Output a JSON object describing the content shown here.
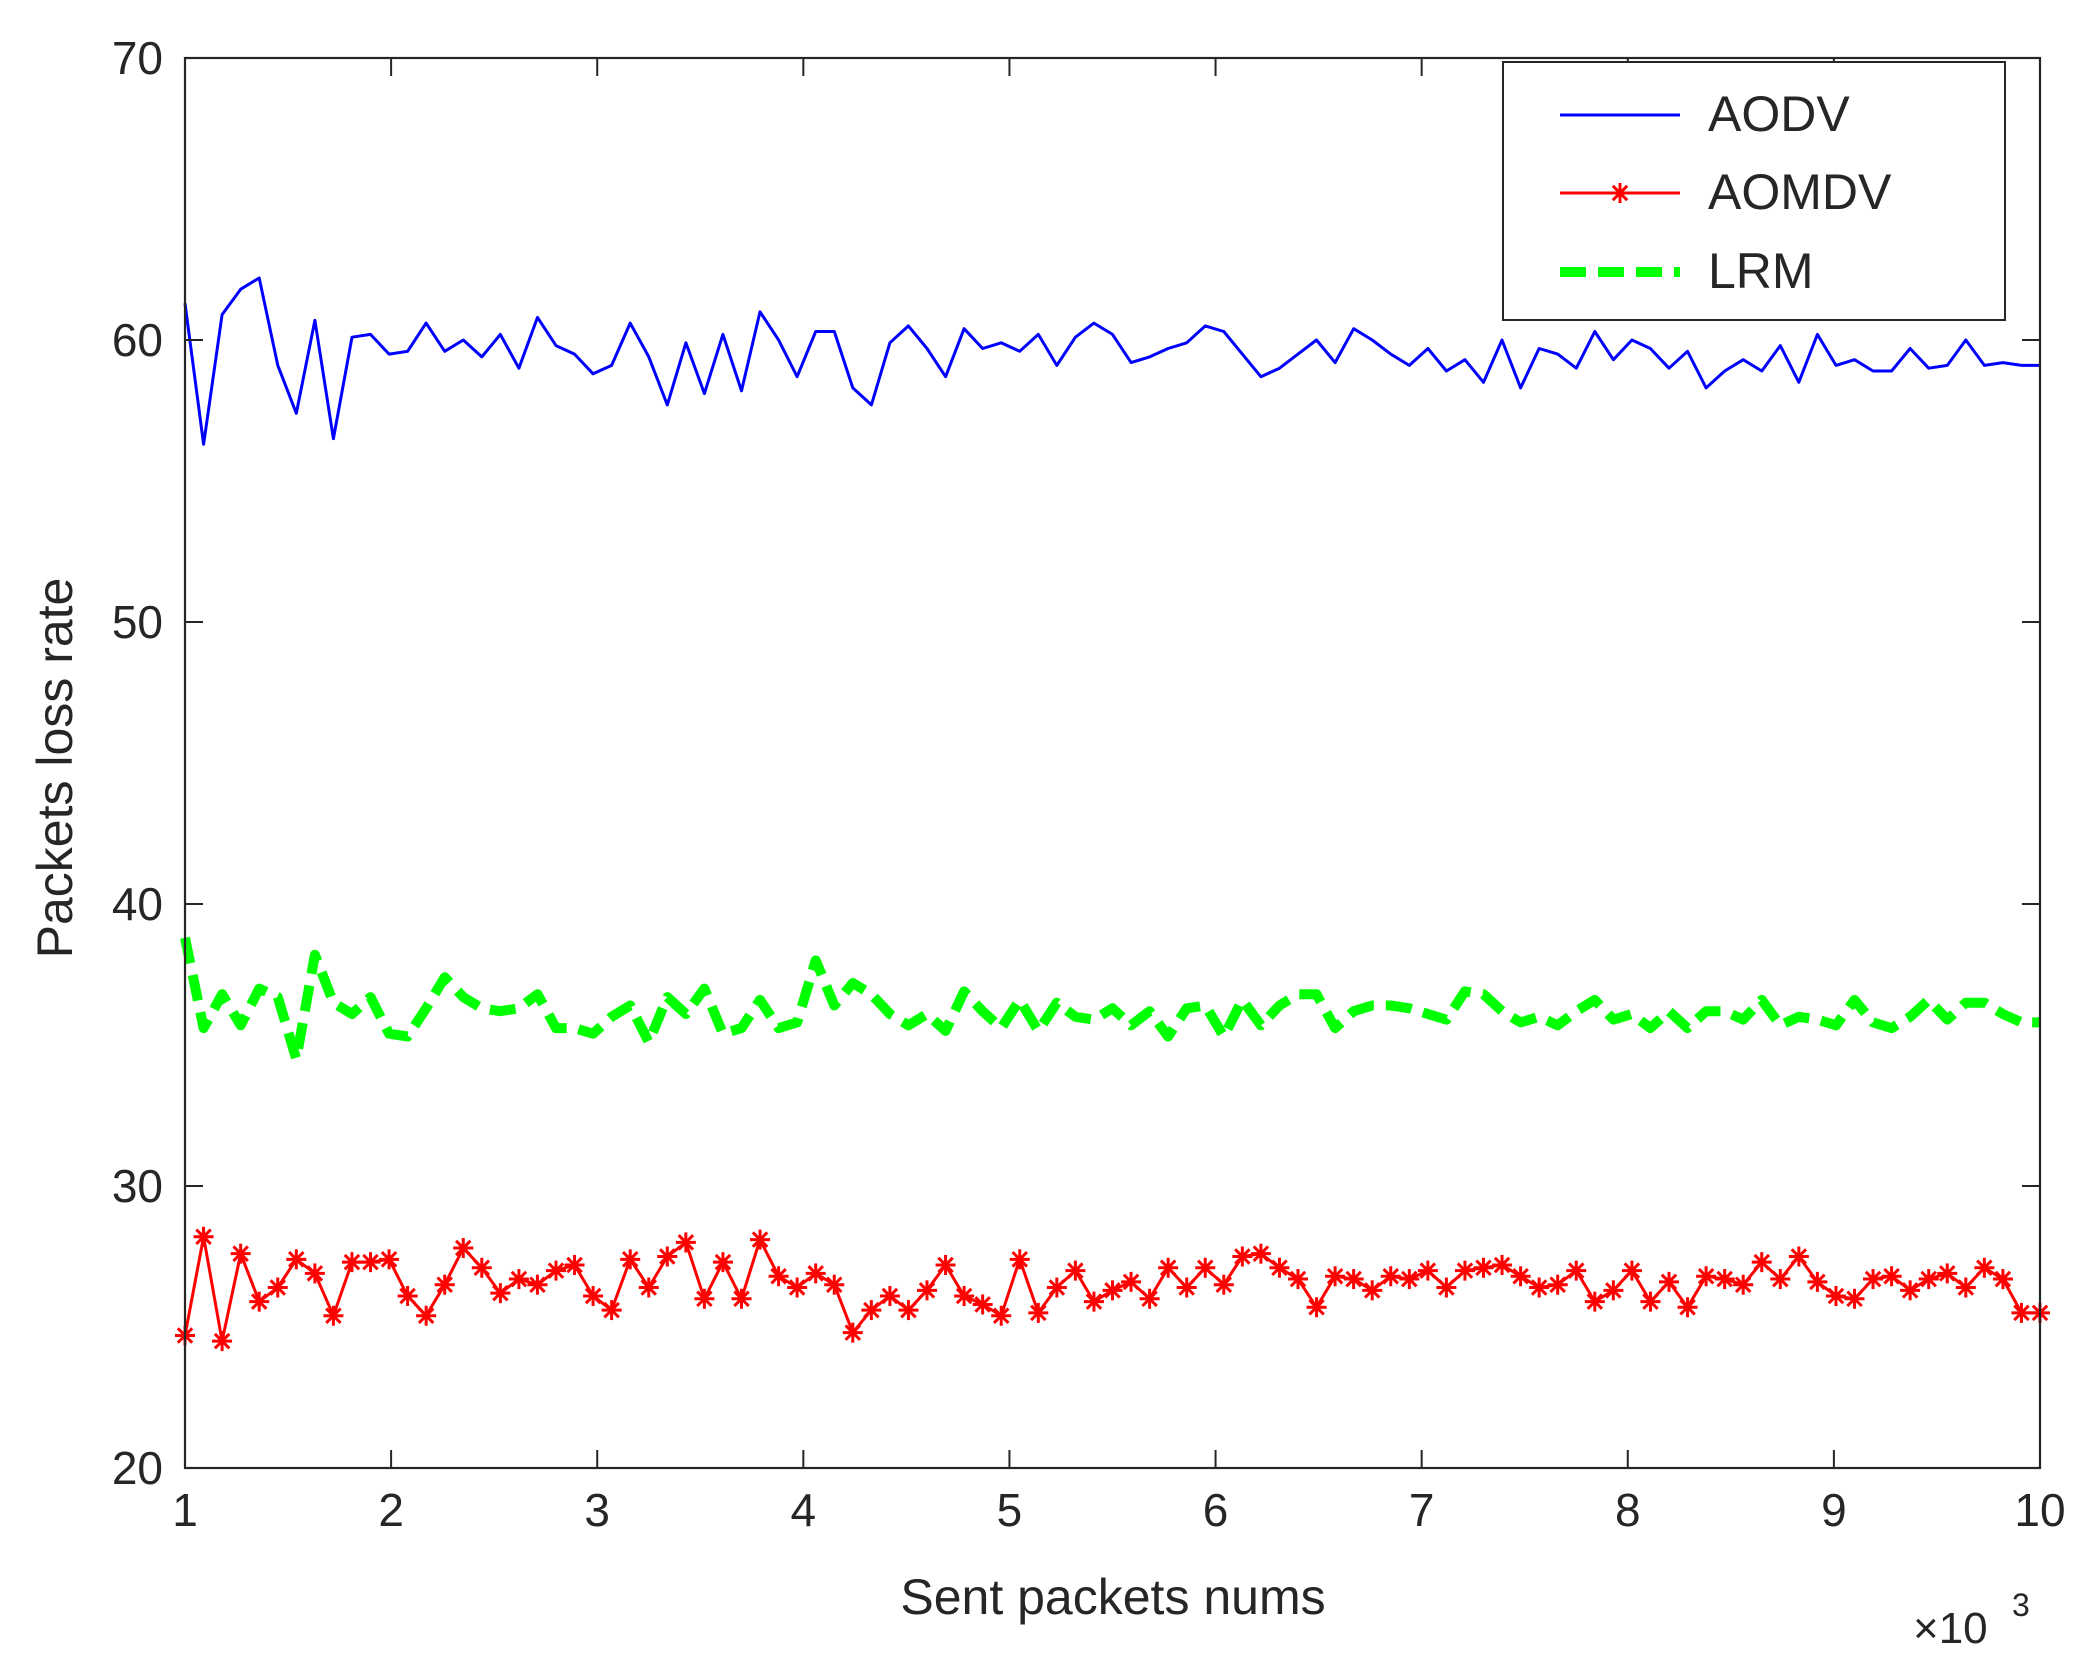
{
  "chart_data": {
    "type": "line",
    "xlabel": "Sent packets nums",
    "ylabel": "Packets loss rate",
    "x_multiplier_label": "×10",
    "x_multiplier_exponent": "3",
    "xlim": [
      1,
      10
    ],
    "ylim": [
      20,
      70
    ],
    "xticks": [
      1,
      2,
      3,
      4,
      5,
      6,
      7,
      8,
      9,
      10
    ],
    "yticks": [
      20,
      30,
      40,
      50,
      60,
      70
    ],
    "grid": false,
    "legend_position": "top-right",
    "x": [
      1.0,
      1.09,
      1.18,
      1.27,
      1.36,
      1.45,
      1.54,
      1.63,
      1.72,
      1.81,
      1.9,
      1.99,
      2.08,
      2.17,
      2.26,
      2.35,
      2.44,
      2.53,
      2.62,
      2.71,
      2.8,
      2.89,
      2.98,
      3.07,
      3.16,
      3.25,
      3.34,
      3.43,
      3.52,
      3.61,
      3.7,
      3.79,
      3.88,
      3.97,
      4.06,
      4.15,
      4.24,
      4.33,
      4.42,
      4.51,
      4.6,
      4.69,
      4.78,
      4.87,
      4.96,
      5.05,
      5.14,
      5.23,
      5.32,
      5.41,
      5.5,
      5.59,
      5.68,
      5.77,
      5.86,
      5.95,
      6.04,
      6.13,
      6.22,
      6.31,
      6.4,
      6.49,
      6.58,
      6.67,
      6.76,
      6.85,
      6.94,
      7.03,
      7.12,
      7.21,
      7.3,
      7.39,
      7.48,
      7.57,
      7.66,
      7.75,
      7.84,
      7.93,
      8.02,
      8.11,
      8.2,
      8.29,
      8.38,
      8.47,
      8.56,
      8.65,
      8.74,
      8.83,
      8.92,
      9.01,
      9.1,
      9.19,
      9.28,
      9.37,
      9.46,
      9.55,
      9.64,
      9.73,
      9.82,
      9.91,
      10.0
    ],
    "series": [
      {
        "name": "AODV",
        "color": "#0000ff",
        "style": "solid",
        "marker": "none",
        "values": [
          61.3,
          56.3,
          60.9,
          61.8,
          62.2,
          59.1,
          57.4,
          60.7,
          56.5,
          60.1,
          60.2,
          59.5,
          59.6,
          60.6,
          59.6,
          60.0,
          59.4,
          60.2,
          59.0,
          60.8,
          59.8,
          59.5,
          58.8,
          59.1,
          60.6,
          59.4,
          57.7,
          59.9,
          58.1,
          60.2,
          58.2,
          61.0,
          60.0,
          58.7,
          60.3,
          60.3,
          58.3,
          57.7,
          59.9,
          60.5,
          59.7,
          58.7,
          60.4,
          59.7,
          59.9,
          59.6,
          60.2,
          59.1,
          60.1,
          60.6,
          60.2,
          59.2,
          59.4,
          59.7,
          59.9,
          60.5,
          60.3,
          59.5,
          58.7,
          59.0,
          59.5,
          60.0,
          59.2,
          60.4,
          60.0,
          59.5,
          59.1,
          59.7,
          58.9,
          59.3,
          58.5,
          60.0,
          58.3,
          59.7,
          59.5,
          59.0,
          60.3,
          59.3,
          60.0,
          59.7,
          59.0,
          59.6,
          58.3,
          58.9,
          59.3,
          58.9,
          59.8,
          58.5,
          60.2,
          59.1,
          59.3,
          58.9,
          58.9,
          59.7,
          59.0,
          59.1,
          60.0,
          59.1,
          59.2,
          59.1,
          59.1
        ]
      },
      {
        "name": "AOMDV",
        "color": "#ff0000",
        "style": "solid",
        "marker": "asterisk",
        "values": [
          24.7,
          28.2,
          24.5,
          27.6,
          25.9,
          26.4,
          27.4,
          26.9,
          25.4,
          27.3,
          27.3,
          27.4,
          26.1,
          25.4,
          26.5,
          27.8,
          27.1,
          26.2,
          26.7,
          26.5,
          27.0,
          27.2,
          26.1,
          25.6,
          27.4,
          26.4,
          27.5,
          28.0,
          26.0,
          27.3,
          26.0,
          28.1,
          26.8,
          26.4,
          26.9,
          26.5,
          24.8,
          25.6,
          26.1,
          25.6,
          26.3,
          27.2,
          26.1,
          25.8,
          25.4,
          27.4,
          25.5,
          26.4,
          27.0,
          25.9,
          26.3,
          26.6,
          26.0,
          27.1,
          26.4,
          27.1,
          26.5,
          27.5,
          27.6,
          27.1,
          26.7,
          25.7,
          26.8,
          26.7,
          26.3,
          26.8,
          26.7,
          27.0,
          26.4,
          27.0,
          27.1,
          27.2,
          26.8,
          26.4,
          26.5,
          27.0,
          25.9,
          26.3,
          27.0,
          25.9,
          26.6,
          25.7,
          26.8,
          26.7,
          26.5,
          27.3,
          26.7,
          27.5,
          26.6,
          26.1,
          26.0,
          26.7,
          26.8,
          26.3,
          26.7,
          26.9,
          26.4,
          27.1,
          26.7,
          25.5,
          25.5
        ]
      },
      {
        "name": "LRM",
        "color": "#00ff00",
        "style": "dashed",
        "marker": "none",
        "values": [
          38.8,
          35.6,
          36.8,
          35.7,
          37.0,
          36.7,
          34.5,
          38.2,
          36.5,
          36.1,
          36.7,
          35.4,
          35.3,
          36.3,
          37.4,
          36.7,
          36.3,
          36.2,
          36.3,
          36.8,
          35.6,
          35.6,
          35.4,
          36.0,
          36.4,
          35.1,
          36.7,
          36.1,
          37.0,
          35.4,
          35.6,
          36.6,
          35.6,
          35.8,
          38.0,
          36.4,
          37.2,
          36.8,
          36.1,
          35.7,
          36.1,
          35.5,
          36.9,
          36.2,
          35.6,
          36.6,
          35.5,
          36.5,
          36.0,
          35.9,
          36.3,
          35.7,
          36.2,
          35.3,
          36.3,
          36.4,
          35.3,
          36.6,
          35.7,
          36.4,
          36.8,
          36.8,
          35.6,
          36.2,
          36.4,
          36.4,
          36.3,
          36.1,
          35.9,
          36.9,
          36.8,
          36.2,
          35.8,
          36.0,
          35.7,
          36.2,
          36.6,
          35.9,
          36.1,
          35.6,
          36.2,
          35.6,
          36.2,
          36.2,
          35.9,
          36.6,
          35.7,
          36.0,
          35.9,
          35.7,
          36.6,
          35.8,
          35.6,
          36.0,
          36.6,
          35.9,
          36.5,
          36.5,
          36.1,
          35.8,
          35.8
        ]
      }
    ]
  }
}
